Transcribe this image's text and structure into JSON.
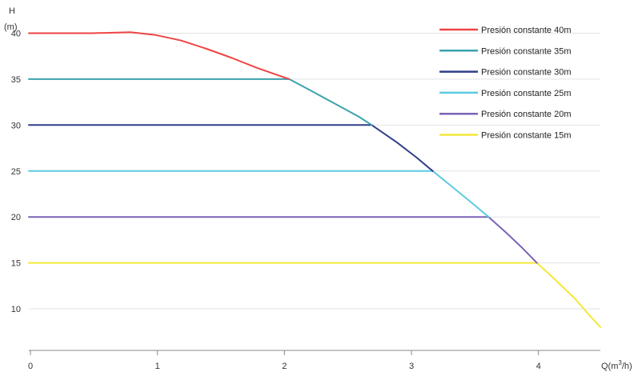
{
  "chart_data": {
    "type": "line",
    "ylabel_line1": "H",
    "ylabel_line2": "(m)",
    "xlabel_prefix": "Q(m",
    "xlabel_sup": "3",
    "xlabel_suffix": "/h)",
    "xlim": [
      0,
      4.5
    ],
    "ylim": [
      6,
      41
    ],
    "x_ticks": [
      0,
      1,
      2,
      3,
      4
    ],
    "y_ticks": [
      10,
      15,
      20,
      25,
      30,
      35,
      40
    ],
    "grid": "horizontal",
    "legend_position": "top-right",
    "series": [
      {
        "name": "Presión constante 40m",
        "color": "#ef4444",
        "points": [
          [
            0,
            40
          ],
          [
            0.5,
            40
          ],
          [
            0.8,
            40.1
          ],
          [
            1.0,
            39.8
          ],
          [
            1.2,
            39.2
          ],
          [
            1.4,
            38.3
          ],
          [
            1.6,
            37.3
          ],
          [
            1.8,
            36.2
          ],
          [
            2.05,
            35
          ]
        ]
      },
      {
        "name": "Presión constante 35m",
        "color": "#3aa3ad",
        "points": [
          [
            0,
            35
          ],
          [
            2.05,
            35
          ],
          [
            2.2,
            33.9
          ],
          [
            2.4,
            32.4
          ],
          [
            2.6,
            30.9
          ],
          [
            2.7,
            30
          ]
        ]
      },
      {
        "name": "Presión constante 30m",
        "color": "#2e3f87",
        "points": [
          [
            0,
            30
          ],
          [
            2.7,
            30
          ],
          [
            2.9,
            28.1
          ],
          [
            3.05,
            26.5
          ],
          [
            3.18,
            25
          ]
        ]
      },
      {
        "name": "Presión constante 25m",
        "color": "#5ccbe0",
        "points": [
          [
            0,
            25
          ],
          [
            3.18,
            25
          ],
          [
            3.35,
            23.1
          ],
          [
            3.5,
            21.4
          ],
          [
            3.62,
            20
          ]
        ]
      },
      {
        "name": "Presión constante 20m",
        "color": "#7b63b6",
        "points": [
          [
            0,
            20
          ],
          [
            3.62,
            20
          ],
          [
            3.75,
            18.4
          ],
          [
            3.88,
            16.7
          ],
          [
            4.0,
            15
          ]
        ]
      },
      {
        "name": "Presión constante 15m",
        "color": "#f3e83a",
        "points": [
          [
            0,
            15
          ],
          [
            4.0,
            15
          ],
          [
            4.15,
            13.1
          ],
          [
            4.3,
            11.1
          ],
          [
            4.42,
            9.2
          ],
          [
            4.5,
            8
          ]
        ]
      }
    ]
  }
}
